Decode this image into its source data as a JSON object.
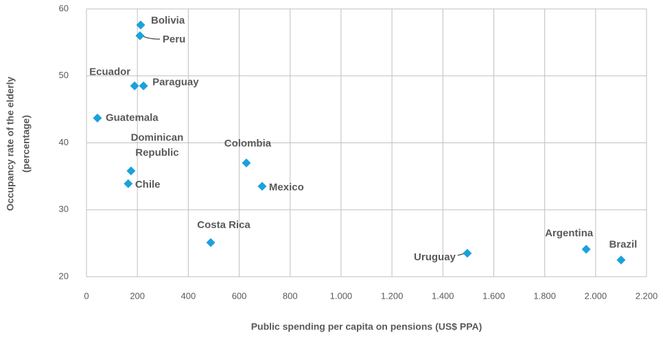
{
  "chart_data": {
    "type": "scatter",
    "xlabel": "Public spending per capita on pensions (US$ PPA)",
    "ylabel": [
      "Occupancy rate of the elderly",
      "(percentage)"
    ],
    "color": "#1ba1dd",
    "grid": true,
    "xlim": [
      0,
      2200
    ],
    "ylim": [
      20,
      60
    ],
    "xticks": [
      0,
      200,
      400,
      600,
      800,
      {
        "value": 1000,
        "label": "1.000"
      },
      {
        "value": 1200,
        "label": "1.200"
      },
      {
        "value": 1400,
        "label": "1.400"
      },
      {
        "value": 1600,
        "label": "1.600"
      },
      {
        "value": 1800,
        "label": "1.800"
      },
      {
        "value": 2000,
        "label": "2.000"
      },
      {
        "value": 2200,
        "label": "2.200"
      }
    ],
    "yticks": [
      20,
      30,
      40,
      50,
      60
    ],
    "points": [
      {
        "label": "Bolivia",
        "x": 213,
        "y": 57.6
      },
      {
        "label": "Peru",
        "x": 210,
        "y": 56.0
      },
      {
        "label": "Ecuador",
        "x": 189,
        "y": 48.5
      },
      {
        "label": "Paraguay",
        "x": 224,
        "y": 48.5
      },
      {
        "label": "Guatemala",
        "x": 43,
        "y": 43.7
      },
      {
        "label": "Dominican Republic",
        "x": 175,
        "y": 35.8
      },
      {
        "label": "Chile",
        "x": 164,
        "y": 33.9
      },
      {
        "label": "Colombia",
        "x": 628,
        "y": 37.0
      },
      {
        "label": "Mexico",
        "x": 690,
        "y": 33.5
      },
      {
        "label": "Costa Rica",
        "x": 488,
        "y": 25.1
      },
      {
        "label": "Uruguay",
        "x": 1496,
        "y": 23.5
      },
      {
        "label": "Argentina",
        "x": 1963,
        "y": 24.1
      },
      {
        "label": "Brazil",
        "x": 2100,
        "y": 22.5
      }
    ]
  }
}
